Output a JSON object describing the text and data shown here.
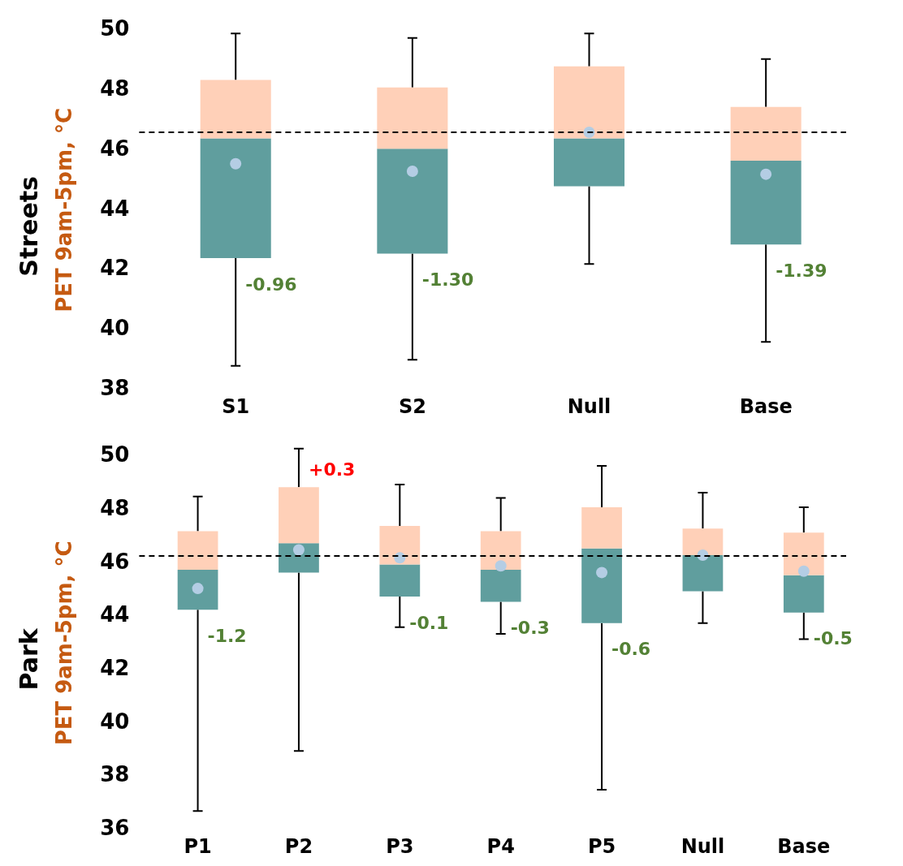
{
  "chart_data": [
    {
      "type": "box",
      "title": "Streets",
      "ylabel": "PET 9am-5pm, °C",
      "categories": [
        "S1",
        "S2",
        "Null",
        "Base"
      ],
      "ylim": [
        38,
        50
      ],
      "yticks": [
        38,
        40,
        42,
        44,
        46,
        48,
        50
      ],
      "series": [
        {
          "color": "#ffd0b8",
          "colors": [
            "#609e9e",
            "#609e9e",
            "#609e9e",
            "#609e9e"
          ],
          "boxes": [
            {
              "low": 38.8,
              "q1": 42.4,
              "median": 46.4,
              "q3": 48.35,
              "high": 49.9
            },
            {
              "low": 39.0,
              "q1": 42.55,
              "median": 46.05,
              "q3": 48.1,
              "high": 49.75
            },
            {
              "low": 42.2,
              "q1": 44.8,
              "median": 46.4,
              "q3": 48.8,
              "high": 49.9
            },
            {
              "low": 39.6,
              "q1": 42.85,
              "median": 45.65,
              "q3": 47.45,
              "high": 49.05
            }
          ]
        },
        {
          "type": "scatter",
          "color": "#b4cde4",
          "x": [
            "S1",
            "S2",
            "Null",
            "Base"
          ],
          "values": [
            45.55,
            45.3,
            46.6,
            45.2
          ]
        }
      ],
      "marker": "circle",
      "ref_lines": [
        {
          "axis": "y",
          "value": 46.6,
          "color": "#000000",
          "line_style": "dashed"
        }
      ],
      "annotations": [
        {
          "text": "-0.96",
          "x": "S1",
          "y": 42.4
        },
        {
          "text": "-1.30",
          "x": "S2",
          "y": 42.55
        },
        {
          "text": "-1.39",
          "x": "Base",
          "y": 42.85
        }
      ]
    },
    {
      "type": "box",
      "title": "Park",
      "ylabel": "PET 9am-5pm, °C",
      "categories": [
        "P1",
        "P2",
        "P3",
        "P4",
        "P5",
        "Null",
        "Base"
      ],
      "ylim": [
        36,
        50
      ],
      "yticks": [
        36,
        38,
        40,
        42,
        44,
        46,
        48,
        50
      ],
      "series": [
        {
          "color": "#ffd0b8",
          "colors": [
            "#609e9e",
            "#609e9e",
            "#609e9e",
            "#609e9e",
            "#609e9e",
            "#609e9e",
            "#609e9e"
          ],
          "boxes": [
            {
              "low": 36.7,
              "q1": 44.25,
              "median": 45.75,
              "q3": 47.2,
              "high": 48.5
            },
            {
              "low": 38.95,
              "q1": 45.65,
              "median": 46.75,
              "q3": 48.85,
              "high": 50.3
            },
            {
              "low": 43.6,
              "q1": 44.75,
              "median": 45.95,
              "q3": 47.4,
              "high": 48.95
            },
            {
              "low": 43.35,
              "q1": 44.55,
              "median": 45.75,
              "q3": 47.2,
              "high": 48.45
            },
            {
              "low": 37.5,
              "q1": 43.75,
              "median": 46.55,
              "q3": 48.1,
              "high": 49.65
            },
            {
              "low": 43.75,
              "q1": 44.95,
              "median": 46.3,
              "q3": 47.3,
              "high": 48.65
            },
            {
              "low": 43.15,
              "q1": 44.15,
              "median": 45.55,
              "q3": 47.15,
              "high": 48.1
            }
          ]
        },
        {
          "type": "scatter",
          "color": "#b4cde4",
          "x": [
            "P1",
            "P2",
            "P3",
            "P4",
            "P5",
            "Null",
            "Base"
          ],
          "values": [
            45.05,
            46.5,
            46.2,
            45.9,
            45.65,
            46.3,
            45.7
          ]
        }
      ],
      "marker": "circle",
      "ref_lines": [
        {
          "axis": "y",
          "value": 46.27,
          "color": "#000000",
          "line_style": "dashed"
        }
      ],
      "annotations": [
        {
          "text": "-1.2",
          "x": "P1",
          "y": 44.25
        },
        {
          "text": "+0.3",
          "x": "P2",
          "y": 48.85
        },
        {
          "text": "-0.1",
          "x": "P3",
          "y": 44.75
        },
        {
          "text": "-0.3",
          "x": "P4",
          "y": 44.55
        },
        {
          "text": "-0.6",
          "x": "P5",
          "y": 43.75
        },
        {
          "text": "-0.5",
          "x": "Base",
          "y": 44.15
        }
      ]
    }
  ]
}
